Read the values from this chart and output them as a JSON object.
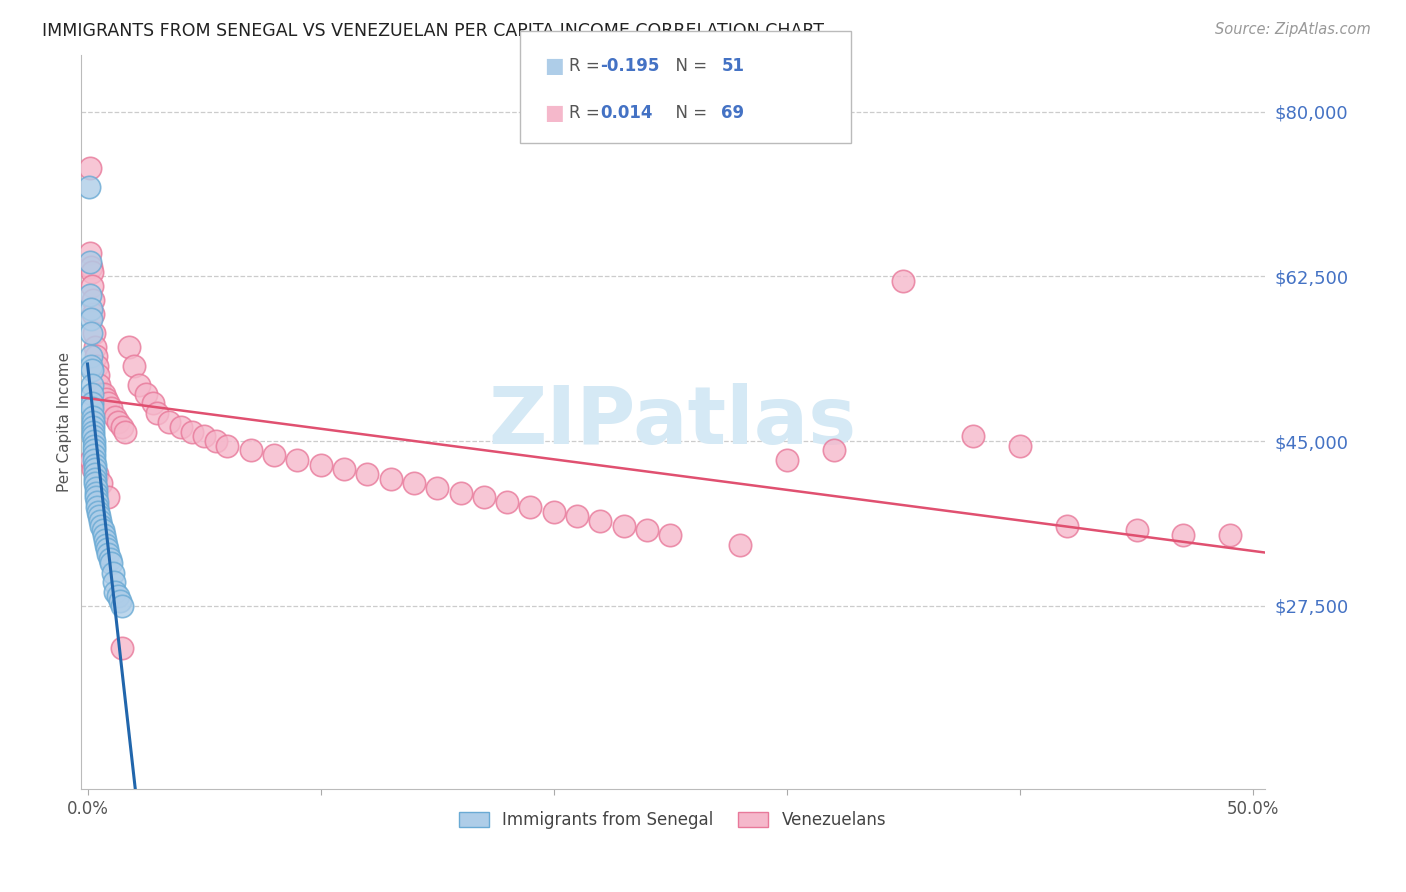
{
  "title": "IMMIGRANTS FROM SENEGAL VS VENEZUELAN PER CAPITA INCOME CORRELATION CHART",
  "source": "Source: ZipAtlas.com",
  "ylabel": "Per Capita Income",
  "ytick_values": [
    27500,
    45000,
    62500,
    80000
  ],
  "ytick_labels": [
    "$27,500",
    "$45,000",
    "$62,500",
    "$80,000"
  ],
  "ymin": 8000,
  "ymax": 86000,
  "xmin": -0.003,
  "xmax": 0.505,
  "color_sen_face": "#aecde8",
  "color_sen_edge": "#6aaad4",
  "color_ven_face": "#f5b8cb",
  "color_ven_edge": "#e8799a",
  "color_blue_line": "#2166ac",
  "color_pink_line": "#e05070",
  "color_dash": "#9ab8d8",
  "watermark_color": "#d5e9f5",
  "grid_color": "#cccccc",
  "tick_color": "#4472c4",
  "title_color": "#222222",
  "source_color": "#999999",
  "legend_r1": "-0.195",
  "legend_n1": "51",
  "legend_r2": "0.014",
  "legend_n2": "69",
  "senegal_x": [
    0.0008,
    0.001,
    0.0012,
    0.0013,
    0.0015,
    0.0015,
    0.0016,
    0.0017,
    0.0018,
    0.0019,
    0.002,
    0.002,
    0.0021,
    0.0022,
    0.0023,
    0.0024,
    0.0025,
    0.0025,
    0.0026,
    0.0027,
    0.0028,
    0.0028,
    0.0029,
    0.003,
    0.003,
    0.0031,
    0.0032,
    0.0033,
    0.0035,
    0.0036,
    0.0038,
    0.004,
    0.0042,
    0.0045,
    0.005,
    0.0055,
    0.006,
    0.0065,
    0.007,
    0.0075,
    0.008,
    0.0085,
    0.009,
    0.0095,
    0.01,
    0.011,
    0.0115,
    0.012,
    0.013,
    0.014,
    0.015
  ],
  "senegal_y": [
    72000,
    64000,
    60500,
    59000,
    58000,
    56500,
    54000,
    53000,
    52500,
    51000,
    50000,
    49000,
    48500,
    47500,
    47000,
    46500,
    46000,
    45500,
    45000,
    44500,
    44000,
    43500,
    43000,
    42500,
    42000,
    41500,
    41000,
    40500,
    40000,
    39500,
    39000,
    38500,
    38000,
    37500,
    37000,
    36500,
    36000,
    35500,
    35000,
    34500,
    34000,
    33500,
    33000,
    32500,
    32000,
    31000,
    30000,
    29000,
    28500,
    28000,
    27500
  ],
  "venezuela_x": [
    0.001,
    0.0012,
    0.0015,
    0.0018,
    0.002,
    0.0022,
    0.0025,
    0.0028,
    0.003,
    0.0035,
    0.004,
    0.0045,
    0.005,
    0.006,
    0.007,
    0.008,
    0.009,
    0.01,
    0.012,
    0.013,
    0.015,
    0.016,
    0.018,
    0.02,
    0.022,
    0.025,
    0.028,
    0.03,
    0.035,
    0.04,
    0.045,
    0.05,
    0.055,
    0.06,
    0.07,
    0.08,
    0.09,
    0.1,
    0.11,
    0.12,
    0.13,
    0.14,
    0.15,
    0.16,
    0.17,
    0.18,
    0.19,
    0.2,
    0.21,
    0.22,
    0.23,
    0.24,
    0.25,
    0.28,
    0.3,
    0.32,
    0.35,
    0.38,
    0.4,
    0.42,
    0.45,
    0.47,
    0.49,
    0.0015,
    0.0025,
    0.004,
    0.006,
    0.009,
    0.015
  ],
  "venezuela_y": [
    74000,
    65000,
    63500,
    63000,
    61500,
    60000,
    58500,
    56500,
    55000,
    54000,
    53000,
    52000,
    51000,
    50000,
    50000,
    49500,
    49000,
    48500,
    47500,
    47000,
    46500,
    46000,
    55000,
    53000,
    51000,
    50000,
    49000,
    48000,
    47000,
    46500,
    46000,
    45500,
    45000,
    44500,
    44000,
    43500,
    43000,
    42500,
    42000,
    41500,
    41000,
    40500,
    40000,
    39500,
    39000,
    38500,
    38000,
    37500,
    37000,
    36500,
    36000,
    35500,
    35000,
    34000,
    43000,
    44000,
    62000,
    45500,
    44500,
    36000,
    35500,
    35000,
    35000,
    43000,
    42000,
    41500,
    40500,
    39000,
    23000
  ]
}
